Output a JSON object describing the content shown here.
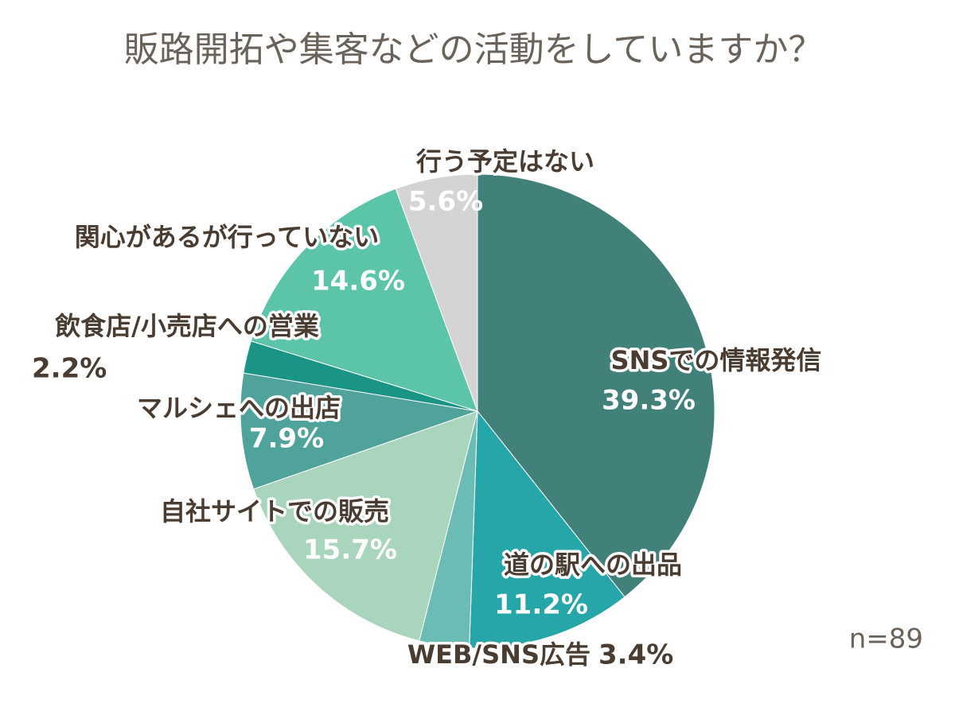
{
  "chart_data": {
    "type": "pie",
    "title": "販路開拓や集客などの活動をしていますか？",
    "categories": [
      "SNSでの情報発信",
      "道の駅への出品",
      "WEB/SNS広告",
      "自社サイトでの販売",
      "マルシェへの出店",
      "飲食店/小売店への営業",
      "関心があるが行っていない",
      "行う予定はない"
    ],
    "values": [
      39.3,
      11.2,
      3.4,
      15.7,
      7.9,
      2.2,
      14.6,
      5.6
    ],
    "value_labels": [
      "39.3%",
      "11.2%",
      "3.4%",
      "15.7%",
      "7.9%",
      "2.2%",
      "14.6%",
      "5.6%"
    ],
    "colors": [
      "#42807a",
      "#26a6a8",
      "#6bbcb5",
      "#aad5bd",
      "#4fa39a",
      "#1a9485",
      "#5bc4a9",
      "#d3d4d3"
    ],
    "note": "n=89"
  }
}
